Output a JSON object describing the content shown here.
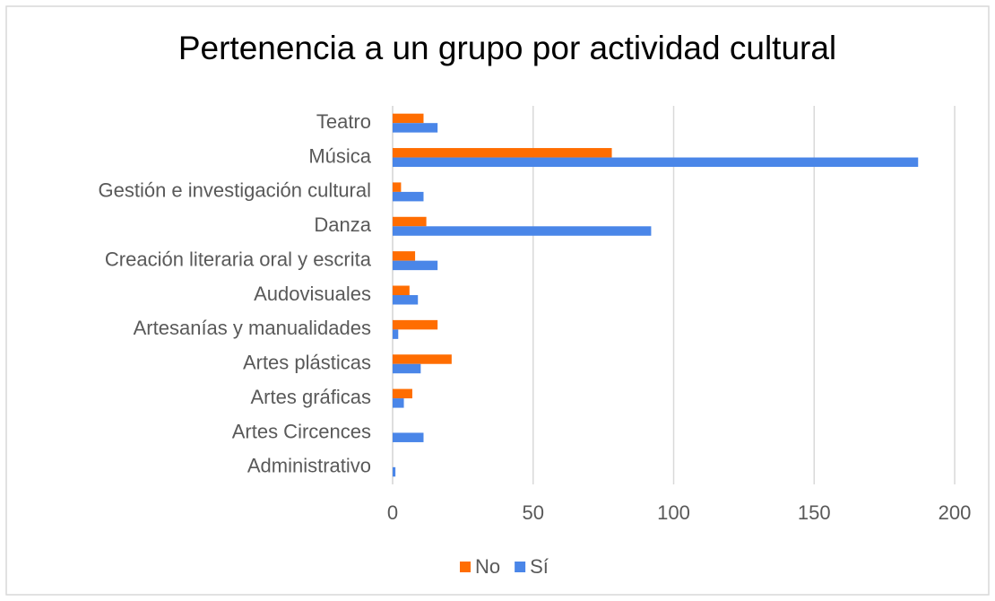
{
  "chart_data": {
    "type": "bar",
    "orientation": "horizontal",
    "title": "Pertenencia a un grupo por actividad cultural",
    "categories": [
      "Teatro",
      "Música",
      "Gestión e investigación cultural",
      "Danza",
      "Creación literaria oral y escrita",
      "Audovisuales",
      "Artesanías y manualidades",
      "Artes plásticas",
      "Artes gráficas",
      "Artes Circences",
      "Administrativo"
    ],
    "series": [
      {
        "name": "No",
        "color": "#ff6d01",
        "values": [
          11,
          78,
          3,
          12,
          8,
          6,
          16,
          21,
          7,
          0,
          0
        ]
      },
      {
        "name": "Sí",
        "color": "#4a86e8",
        "values": [
          16,
          187,
          11,
          92,
          16,
          9,
          2,
          10,
          4,
          11,
          1
        ]
      }
    ],
    "xlim": [
      0,
      200
    ],
    "xticks": [
      0,
      50,
      100,
      150,
      200
    ],
    "grid": true,
    "legend": "bottom"
  }
}
